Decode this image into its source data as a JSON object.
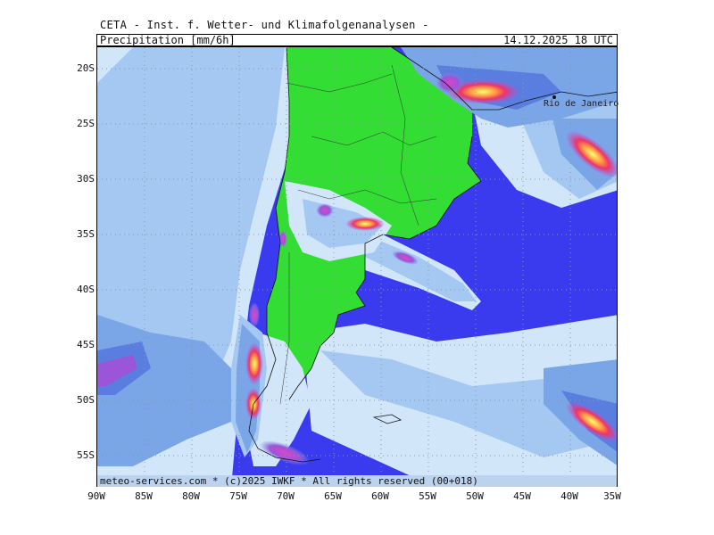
{
  "header": {
    "title": "CETA - Inst. f. Wetter- und Klimafolgenanalysen -",
    "variable": "Precipitation [mm/6h]",
    "valid_time": "14.12.2025 18 UTC"
  },
  "map": {
    "region": "South America south of 18S",
    "projection": "lat-lon",
    "lon_range": [
      -90,
      -35
    ],
    "lat_range": [
      -58,
      -18
    ],
    "city_label": "Rio de Janeiro",
    "grid_lines": "dotted",
    "colors": {
      "ocean_base": "#3a3aee",
      "land_dry": "#33dd33",
      "precip_light": "#d2e6fa",
      "precip_low": "#a5c8f2",
      "precip_mid": "#7aa6e8",
      "precip_high": "#5a7ee0",
      "precip_purple": "#9b55d8",
      "precip_magenta": "#dd44cc",
      "precip_red": "#ee3355",
      "precip_max": "#ffff66"
    }
  },
  "axes": {
    "y_ticks": [
      "20S",
      "25S",
      "30S",
      "35S",
      "40S",
      "45S",
      "50S",
      "55S"
    ],
    "x_ticks": [
      "90W",
      "85W",
      "80W",
      "75W",
      "70W",
      "65W",
      "60W",
      "55W",
      "50W",
      "45W",
      "40W",
      "35W"
    ]
  },
  "footer": {
    "credit": "meteo-services.com * (c)2025 IWKF * All rights reserved (00+018)"
  }
}
